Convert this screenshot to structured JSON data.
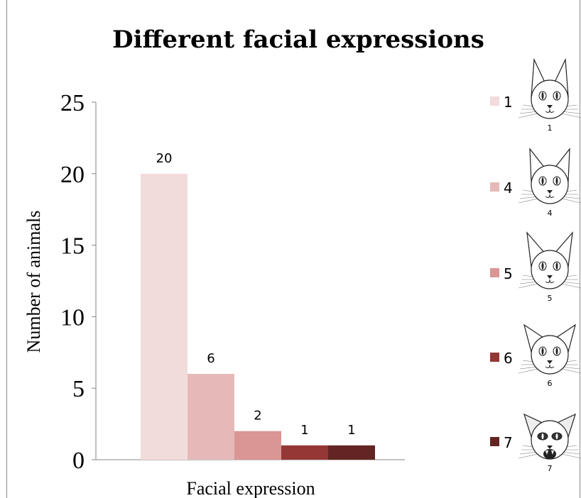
{
  "chart_data": {
    "type": "bar",
    "title": "Different facial expressions",
    "xlabel": "Facial expression",
    "ylabel": "Number of animals",
    "ylim": [
      0,
      25
    ],
    "yticks": [
      0,
      5,
      10,
      15,
      20,
      25
    ],
    "grid": false,
    "legend_position": "right",
    "categories": [
      "1",
      "4",
      "5",
      "6",
      "7"
    ],
    "values": [
      20,
      6,
      2,
      1,
      1
    ],
    "data_labels": [
      "20",
      "6",
      "2",
      "1",
      "1"
    ],
    "colors": [
      "#f2dcdb",
      "#e6b9b8",
      "#d99694",
      "#953735",
      "#632523"
    ],
    "legend": [
      {
        "label": "1",
        "face_caption": "1",
        "face_icon": "cat-face-neutral-icon"
      },
      {
        "label": "4",
        "face_caption": "4",
        "face_icon": "cat-face-ears-sideways-icon"
      },
      {
        "label": "5",
        "face_caption": "5",
        "face_icon": "cat-face-ears-back-icon"
      },
      {
        "label": "6",
        "face_caption": "6",
        "face_icon": "cat-face-ears-flattening-icon"
      },
      {
        "label": "7",
        "face_caption": "7",
        "face_icon": "cat-face-hissing-icon"
      }
    ]
  }
}
